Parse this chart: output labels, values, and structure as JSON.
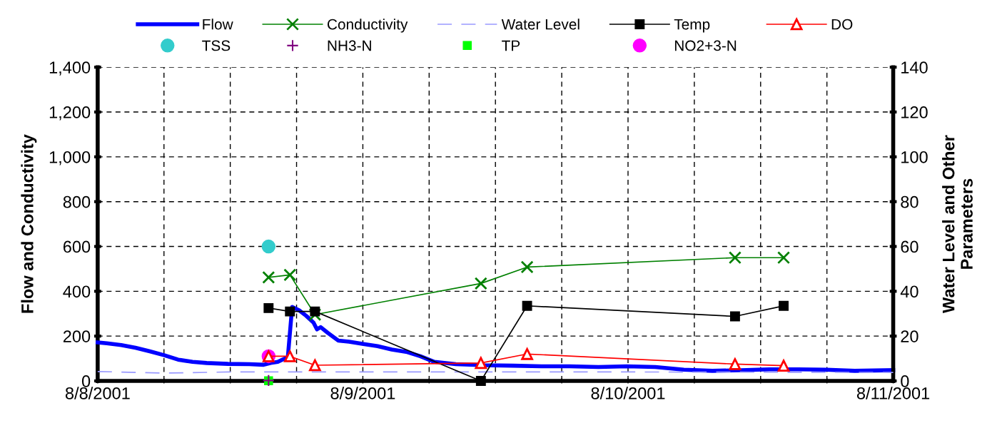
{
  "chart_data": {
    "type": "line",
    "xlim": [
      "2001-08-08",
      "2001-08-11"
    ],
    "xticks": [
      {
        "value": "2001-08-08",
        "label": "8/8/2001"
      },
      {
        "value": "2001-08-08T06:00",
        "label": null
      },
      {
        "value": "2001-08-08T12:00",
        "label": null
      },
      {
        "value": "2001-08-08T18:00",
        "label": null
      },
      {
        "value": "2001-08-09",
        "label": "8/9/2001"
      },
      {
        "value": "2001-08-09T06:00",
        "label": null
      },
      {
        "value": "2001-08-09T12:00",
        "label": null
      },
      {
        "value": "2001-08-09T18:00",
        "label": null
      },
      {
        "value": "2001-08-10",
        "label": "8/10/2001"
      },
      {
        "value": "2001-08-10T06:00",
        "label": null
      },
      {
        "value": "2001-08-10T12:00",
        "label": null
      },
      {
        "value": "2001-08-10T18:00",
        "label": null
      },
      {
        "value": "2001-08-11",
        "label": "8/11/2001"
      }
    ],
    "ylim": [
      0,
      1400
    ],
    "yticks": [
      0,
      200,
      400,
      600,
      800,
      {
        "value": 1000,
        "label": "1,000"
      },
      {
        "value": 1200,
        "label": "1,200"
      },
      {
        "value": 1400,
        "label": "1,400"
      }
    ],
    "y2lim": [
      0,
      140
    ],
    "y2ticks": [
      0,
      20,
      40,
      60,
      80,
      100,
      120,
      140
    ],
    "ylabel": "Flow and Conductivity",
    "y2label": "Water Level and Other\nParameters",
    "grid": true,
    "legend": "top",
    "series": [
      {
        "name": "Flow",
        "axis": "y",
        "color": "#0000ff",
        "marker": "none",
        "line_style": "solid",
        "x": [
          "2001-08-08T00:00",
          "2001-08-08T00:50",
          "2001-08-08T02:08",
          "2001-08-08T03:25",
          "2001-08-08T04:43",
          "2001-08-08T06:00",
          "2001-08-08T07:17",
          "2001-08-08T08:35",
          "2001-08-08T09:52",
          "2001-08-08T11:48",
          "2001-08-08T13:44",
          "2001-08-08T15:01",
          "2001-08-08T15:40",
          "2001-08-08T16:18",
          "2001-08-08T16:57",
          "2001-08-08T17:13",
          "2001-08-08T17:36",
          "2001-08-08T18:14",
          "2001-08-08T18:53",
          "2001-08-08T19:32",
          "2001-08-08T19:51",
          "2001-08-08T20:11",
          "2001-08-08T20:49",
          "2001-08-08T21:47",
          "2001-08-08T22:45",
          "2001-08-09T00:03",
          "2001-08-09T01:20",
          "2001-08-09T02:37",
          "2001-08-09T03:55",
          "2001-08-09T05:12",
          "2001-08-09T06:29",
          "2001-08-09T08:25",
          "2001-08-09T11:00",
          "2001-08-09T13:35",
          "2001-08-09T16:10",
          "2001-08-09T18:44",
          "2001-08-09T21:19",
          "2001-08-09T23:54",
          "2001-08-10T02:28",
          "2001-08-10T05:03",
          "2001-08-10T07:38",
          "2001-08-10T10:13",
          "2001-08-10T12:47",
          "2001-08-10T15:22",
          "2001-08-10T17:56",
          "2001-08-10T20:31",
          "2001-08-11T00:00"
        ],
        "values": [
          172,
          168,
          160,
          148,
          132,
          115,
          95,
          85,
          80,
          76,
          75,
          72,
          80,
          85,
          100,
          110,
          330,
          315,
          290,
          260,
          230,
          240,
          215,
          180,
          175,
          165,
          155,
          140,
          130,
          110,
          85,
          75,
          70,
          68,
          65,
          65,
          62,
          65,
          62,
          50,
          45,
          48,
          52,
          52,
          50,
          45,
          48
        ]
      },
      {
        "name": "Conductivity",
        "axis": "y",
        "color": "#008000",
        "marker": "cross",
        "line_style": "solid",
        "x": [
          "2001-08-08T15:28",
          "2001-08-08T17:24",
          "2001-08-08T19:40",
          "2001-08-09T10:41",
          "2001-08-09T14:52",
          "2001-08-10T09:41",
          "2001-08-10T14:05"
        ],
        "values": [
          462,
          473,
          296,
          435,
          508,
          550,
          550
        ]
      },
      {
        "name": "Water Level",
        "axis": "y2",
        "color": "#9999ff",
        "marker": "none",
        "line_style": "dashed",
        "x": [
          "2001-08-08T00:00",
          "2001-08-08T06:00",
          "2001-08-08T12:00",
          "2001-08-09T00:00",
          "2001-08-10T00:00",
          "2001-08-11T00:00"
        ],
        "values": [
          4.2,
          3.5,
          4,
          4,
          4,
          3.8
        ]
      },
      {
        "name": "Temp",
        "axis": "y2",
        "color": "#000000",
        "marker": "square",
        "line_style": "solid",
        "x": [
          "2001-08-08T15:28",
          "2001-08-08T17:24",
          "2001-08-08T19:40",
          "2001-08-09T10:41",
          "2001-08-09T14:52",
          "2001-08-10T09:41",
          "2001-08-10T14:05"
        ],
        "values": [
          32.5,
          31,
          31,
          0,
          33.5,
          28.8,
          33.5
        ]
      },
      {
        "name": "DO",
        "axis": "y2",
        "color": "#ff0000",
        "marker": "triangle",
        "line_style": "solid",
        "x": [
          "2001-08-08T15:28",
          "2001-08-08T17:24",
          "2001-08-08T19:40",
          "2001-08-09T10:41",
          "2001-08-09T14:52",
          "2001-08-10T09:41",
          "2001-08-10T14:05"
        ],
        "values": [
          11,
          11,
          7,
          8,
          12,
          7.5,
          6.8
        ]
      },
      {
        "name": "TSS",
        "type": "scatter",
        "axis": "y2",
        "color": "#33cccc",
        "marker": "circle",
        "x": [
          "2001-08-08T15:28"
        ],
        "values": [
          60
        ]
      },
      {
        "name": "NH3-N",
        "type": "scatter",
        "axis": "y2",
        "color": "#800080",
        "marker": "cross",
        "x": [
          "2001-08-08T15:28"
        ],
        "values": [
          0.2
        ]
      },
      {
        "name": "TP",
        "type": "scatter",
        "axis": "y2",
        "color": "#00ff00",
        "marker": "square",
        "x": [
          "2001-08-08T15:28"
        ],
        "values": [
          0.1
        ]
      },
      {
        "name": "NO2+3-N",
        "type": "scatter",
        "axis": "y2",
        "color": "#ff00ff",
        "marker": "circle",
        "x": [
          "2001-08-08T15:28"
        ],
        "values": [
          11
        ]
      }
    ]
  }
}
